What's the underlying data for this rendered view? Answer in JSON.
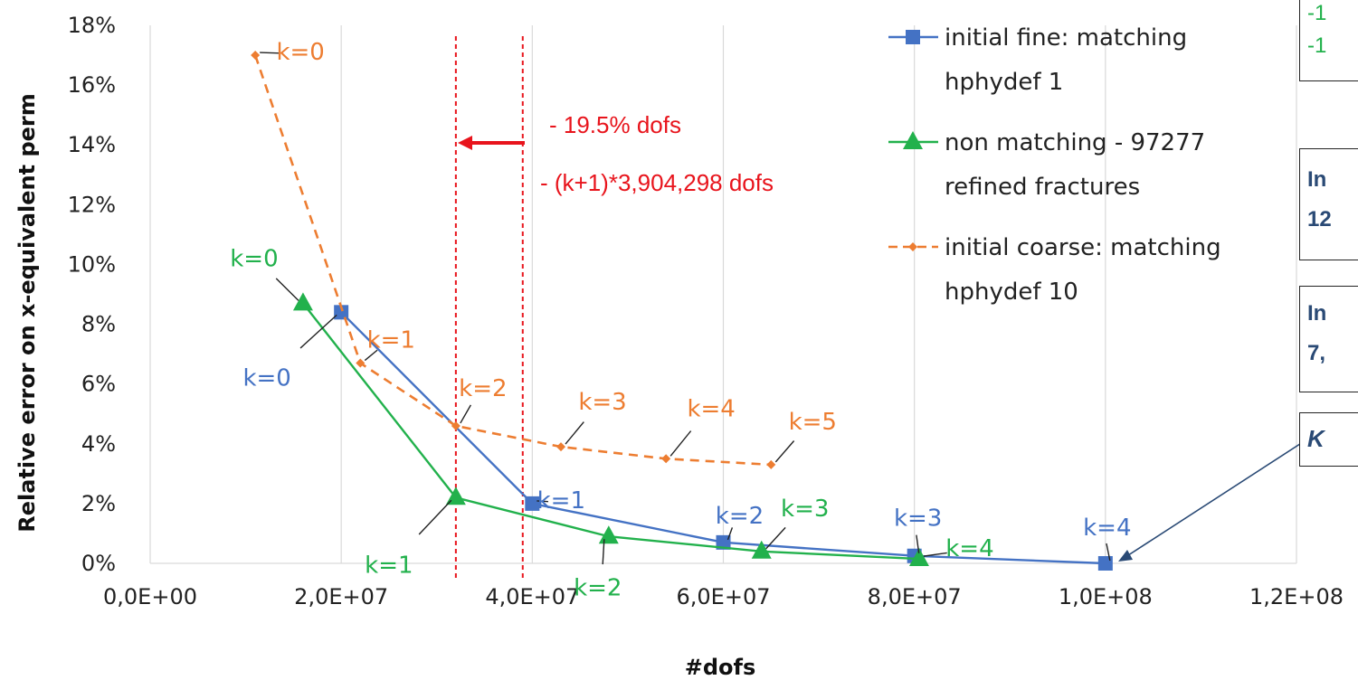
{
  "chart_data": {
    "type": "line",
    "xlabel": "#dofs",
    "ylabel": "Relative error on x-equivalent perm",
    "xlim": [
      0,
      120000000
    ],
    "ylim": [
      0,
      0.18
    ],
    "x_ticks": [
      "0,0E+00",
      "2,0E+07",
      "4,0E+07",
      "6,0E+07",
      "8,0E+07",
      "1,0E+08",
      "1,2E+08"
    ],
    "y_ticks": [
      "0%",
      "2%",
      "4%",
      "6%",
      "8%",
      "10%",
      "12%",
      "14%",
      "16%",
      "18%"
    ],
    "grid": "vertical",
    "legend_position": "top-right",
    "series": [
      {
        "name_lines": [
          "initial fine: matching",
          "hphydef 1"
        ],
        "color": "#4472c4",
        "marker": "square",
        "dash": "solid",
        "x": [
          20000000,
          40000000,
          60000000,
          80000000,
          100000000
        ],
        "y": [
          0.084,
          0.02,
          0.007,
          0.0025,
          0.0
        ],
        "labels": [
          "k=0",
          "k=1",
          "k=2",
          "k=3",
          "k=4"
        ]
      },
      {
        "name_lines": [
          "non matching - 97277",
          "refined fractures"
        ],
        "color": "#22b14c",
        "marker": "triangle",
        "dash": "solid",
        "x": [
          16000000,
          32000000,
          48000000,
          64000000,
          80500000
        ],
        "y": [
          0.087,
          0.022,
          0.009,
          0.004,
          0.0015
        ],
        "labels": [
          "k=0",
          "k=1",
          "k=2",
          "k=3",
          "k=4"
        ]
      },
      {
        "name_lines": [
          "initial coarse: matching",
          "hphydef 10"
        ],
        "color": "#ed7d31",
        "marker": "diamond",
        "dash": "dashed",
        "x": [
          11000000,
          22000000,
          32000000,
          43000000,
          54000000,
          65000000
        ],
        "y": [
          0.17,
          0.067,
          0.046,
          0.039,
          0.035,
          0.033
        ],
        "labels": [
          "k=0",
          "k=1",
          "k=2",
          "k=3",
          "k=4",
          "k=5"
        ]
      }
    ],
    "reference_lines_x": [
      32000000,
      39000000
    ],
    "annotations": [
      "- 19.5% dofs",
      "- (k+1)*3,904,298 dofs"
    ]
  },
  "side_boxes": {
    "box1_lines": [
      "-1",
      "-1"
    ],
    "box2_lines": [
      "In",
      "12"
    ],
    "box3_lines": [
      "In",
      "7,"
    ],
    "box4_text": "K"
  }
}
